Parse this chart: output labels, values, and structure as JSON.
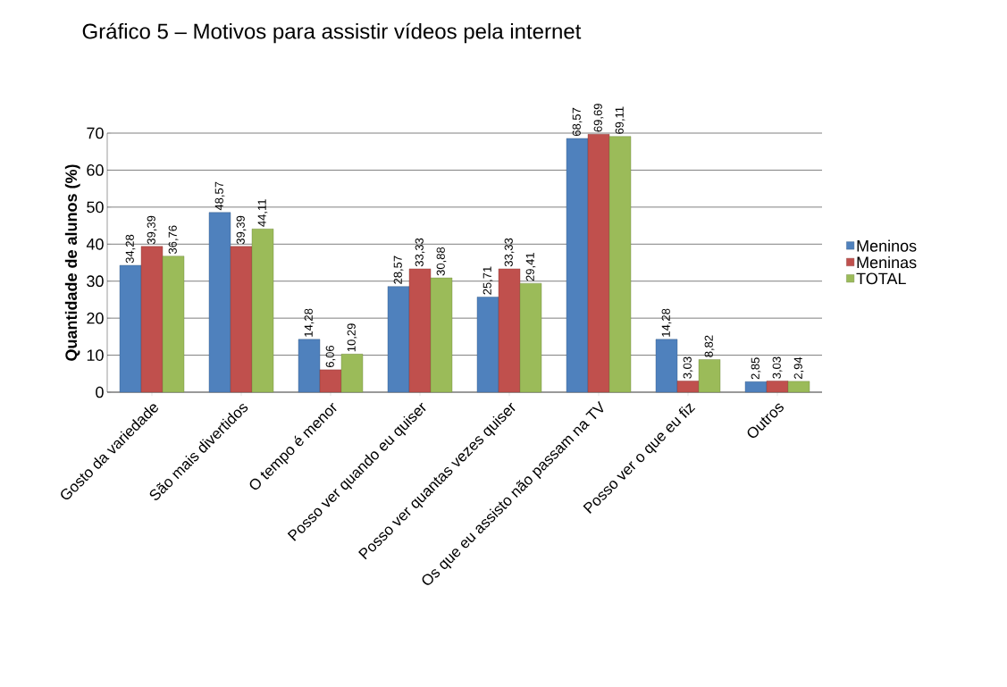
{
  "chart_data": {
    "type": "bar",
    "title": "Gráfico 5 – Motivos para assistir vídeos pela internet",
    "ylabel": "Quantidade de alunos (%)",
    "categories": [
      "Gosto da variedade",
      "São mais divertidos",
      "O tempo é menor",
      "Posso ver quando eu quiser",
      "Posso ver quantas vezes quiser",
      "Os que eu assisto não passam na TV",
      "Posso ver o que eu fiz",
      "Outros"
    ],
    "series": [
      {
        "name": "Meninos",
        "color": "#4f81bd",
        "values": [
          34.28,
          48.57,
          14.28,
          28.57,
          25.71,
          68.57,
          14.28,
          2.85
        ],
        "value_labels": [
          "34,28",
          "48,57",
          "14,28",
          "28,57",
          "25,71",
          "68,57",
          "14,28",
          "2,85"
        ]
      },
      {
        "name": "Meninas",
        "color": "#c0504d",
        "values": [
          39.39,
          39.39,
          6.06,
          33.33,
          33.33,
          69.69,
          3.03,
          3.03
        ],
        "value_labels": [
          "39,39",
          "39,39",
          "6,06",
          "33,33",
          "33,33",
          "69,69",
          "3,03",
          "3,03"
        ]
      },
      {
        "name": "TOTAL",
        "color": "#9bbb59",
        "values": [
          36.76,
          44.11,
          10.29,
          30.88,
          29.41,
          69.11,
          8.82,
          2.94
        ],
        "value_labels": [
          "36,76",
          "44,11",
          "10,29",
          "30,88",
          "29,41",
          "69,11",
          "8,82",
          "2,94"
        ]
      }
    ],
    "ylim": [
      0,
      70
    ],
    "yticks": [
      0,
      10,
      20,
      30,
      40,
      50,
      60,
      70
    ],
    "grid": "y",
    "legend": "right"
  }
}
